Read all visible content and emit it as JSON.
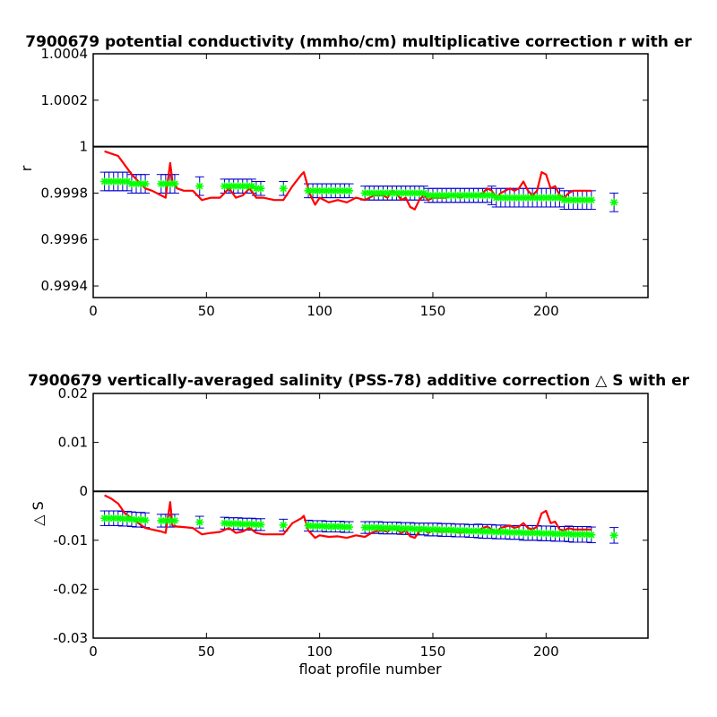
{
  "chart_data": [
    {
      "type": "scatter",
      "title": "7900679 potential conductivity (mmho/cm) multiplicative correction r with er",
      "xlabel": "",
      "ylabel": "r",
      "xlim": [
        0,
        245
      ],
      "ylim": [
        0.99935,
        1.0004
      ],
      "xticks": [
        0,
        50,
        100,
        150,
        200
      ],
      "yticks": [
        0.9994,
        0.9996,
        0.9998,
        1,
        1.0002,
        1.0004
      ],
      "ytick_labels": [
        "0.9994",
        "0.9996",
        "0.9998",
        "1",
        "1.0002",
        "1.0004"
      ],
      "reference_line": 1,
      "colors": {
        "reference": "#000000",
        "red_line": "#ff0000",
        "green_points": "#00ff00",
        "error_bars": "#0000cc"
      },
      "red_line": {
        "x": [
          5,
          8,
          11,
          14,
          17,
          20,
          23,
          26,
          30,
          32,
          34,
          35,
          37,
          40,
          44,
          48,
          52,
          56,
          60,
          63,
          66,
          69,
          72,
          75,
          80,
          84,
          88,
          92,
          93,
          95,
          96,
          98,
          100,
          104,
          108,
          112,
          116,
          120,
          124,
          128,
          130,
          132,
          134,
          136,
          138,
          140,
          142,
          144,
          146,
          148,
          150,
          152,
          154,
          156,
          158,
          160,
          162,
          164,
          166,
          168,
          170,
          172,
          174,
          176,
          178,
          180,
          182,
          184,
          186,
          188,
          190,
          192,
          194,
          196,
          198,
          200,
          202,
          204,
          206,
          208,
          210,
          212,
          214,
          216,
          218,
          220
        ],
        "y": [
          0.99998,
          0.99997,
          0.99996,
          0.99992,
          0.99988,
          0.99985,
          0.99982,
          0.99981,
          0.99979,
          0.99978,
          0.99993,
          0.99985,
          0.99982,
          0.99981,
          0.99981,
          0.99977,
          0.99978,
          0.99978,
          0.99982,
          0.99978,
          0.99979,
          0.99982,
          0.99978,
          0.99978,
          0.99977,
          0.99977,
          0.99983,
          0.99988,
          0.99989,
          0.99982,
          0.99979,
          0.99975,
          0.99978,
          0.99976,
          0.99977,
          0.99976,
          0.99978,
          0.99977,
          0.99979,
          0.99979,
          0.99978,
          0.99981,
          0.9998,
          0.99977,
          0.99978,
          0.99974,
          0.99973,
          0.99977,
          0.99979,
          0.99977,
          0.99978,
          0.99978,
          0.99978,
          0.99978,
          0.99979,
          0.99979,
          0.99978,
          0.99979,
          0.99979,
          0.99979,
          0.99979,
          0.9998,
          0.99982,
          0.99981,
          0.99978,
          0.9998,
          0.99981,
          0.99982,
          0.99981,
          0.99982,
          0.99985,
          0.99981,
          0.99979,
          0.99981,
          0.99989,
          0.99988,
          0.99982,
          0.99983,
          0.99979,
          0.99978,
          0.9998,
          0.99981,
          0.99981,
          0.99981,
          0.99981,
          0.99981
        ]
      },
      "points": {
        "x": [
          5,
          7,
          9,
          11,
          13,
          15,
          17,
          19,
          21,
          23,
          30,
          32,
          34,
          36,
          47,
          58,
          60,
          62,
          64,
          66,
          68,
          70,
          72,
          74,
          84,
          95,
          97,
          99,
          101,
          103,
          105,
          107,
          109,
          111,
          113,
          120,
          122,
          124,
          126,
          128,
          130,
          132,
          134,
          136,
          138,
          140,
          142,
          144,
          146,
          148,
          150,
          152,
          154,
          156,
          158,
          160,
          162,
          164,
          166,
          168,
          170,
          172,
          174,
          176,
          178,
          180,
          182,
          184,
          186,
          188,
          190,
          192,
          194,
          196,
          198,
          200,
          202,
          204,
          206,
          208,
          210,
          212,
          214,
          216,
          218,
          220,
          230
        ],
        "y": [
          0.99985,
          0.99985,
          0.99985,
          0.99985,
          0.99985,
          0.99985,
          0.99984,
          0.99984,
          0.99984,
          0.99984,
          0.99984,
          0.99984,
          0.99984,
          0.99984,
          0.99983,
          0.99983,
          0.99983,
          0.99983,
          0.99983,
          0.99983,
          0.99983,
          0.99983,
          0.99982,
          0.99982,
          0.99982,
          0.99981,
          0.99981,
          0.99981,
          0.99981,
          0.99981,
          0.99981,
          0.99981,
          0.99981,
          0.99981,
          0.99981,
          0.9998,
          0.9998,
          0.9998,
          0.9998,
          0.9998,
          0.9998,
          0.9998,
          0.9998,
          0.9998,
          0.9998,
          0.9998,
          0.9998,
          0.9998,
          0.9998,
          0.99979,
          0.99979,
          0.99979,
          0.99979,
          0.99979,
          0.99979,
          0.99979,
          0.99979,
          0.99979,
          0.99979,
          0.99979,
          0.99979,
          0.99979,
          0.99979,
          0.99979,
          0.99978,
          0.99978,
          0.99978,
          0.99978,
          0.99978,
          0.99978,
          0.99978,
          0.99978,
          0.99978,
          0.99978,
          0.99978,
          0.99978,
          0.99978,
          0.99978,
          0.99978,
          0.99977,
          0.99977,
          0.99977,
          0.99977,
          0.99977,
          0.99977,
          0.99977,
          0.99976
        ],
        "err": [
          4e-05,
          4e-05,
          4e-05,
          4e-05,
          4e-05,
          4e-05,
          4e-05,
          4e-05,
          4e-05,
          4e-05,
          4e-05,
          4e-05,
          4e-05,
          4e-05,
          4e-05,
          3e-05,
          3e-05,
          3e-05,
          3e-05,
          3e-05,
          3e-05,
          3e-05,
          3e-05,
          3e-05,
          3e-05,
          3e-05,
          3e-05,
          3e-05,
          3e-05,
          3e-05,
          3e-05,
          3e-05,
          3e-05,
          3e-05,
          3e-05,
          3e-05,
          3e-05,
          3e-05,
          3e-05,
          3e-05,
          3e-05,
          3e-05,
          3e-05,
          3e-05,
          3e-05,
          3e-05,
          3e-05,
          3e-05,
          3e-05,
          3e-05,
          3e-05,
          3e-05,
          3e-05,
          3e-05,
          3e-05,
          3e-05,
          3e-05,
          3e-05,
          3e-05,
          3e-05,
          3e-05,
          3e-05,
          3e-05,
          4e-05,
          4e-05,
          4e-05,
          4e-05,
          4e-05,
          4e-05,
          4e-05,
          4e-05,
          4e-05,
          4e-05,
          4e-05,
          4e-05,
          4e-05,
          4e-05,
          4e-05,
          4e-05,
          4e-05,
          4e-05,
          4e-05,
          4e-05,
          4e-05,
          4e-05,
          4e-05,
          4e-05
        ]
      }
    },
    {
      "type": "scatter",
      "title": "7900679 vertically-averaged salinity (PSS-78) additive correction △ S with er",
      "xlabel": "float profile number",
      "ylabel": "△ S",
      "xlim": [
        0,
        245
      ],
      "ylim": [
        -0.03,
        0.02
      ],
      "xticks": [
        0,
        50,
        100,
        150,
        200
      ],
      "yticks": [
        -0.03,
        -0.02,
        -0.01,
        0,
        0.01,
        0.02
      ],
      "ytick_labels": [
        "-0.03",
        "-0.02",
        "-0.01",
        "0",
        "0.01",
        "0.02"
      ],
      "reference_line": 0,
      "colors": {
        "reference": "#000000",
        "red_line": "#ff0000",
        "green_points": "#00ff00",
        "error_bars": "#0000cc"
      },
      "red_line": {
        "x": [
          5,
          8,
          11,
          14,
          17,
          20,
          23,
          26,
          30,
          32,
          34,
          35,
          37,
          40,
          44,
          48,
          52,
          56,
          60,
          63,
          66,
          69,
          72,
          75,
          80,
          84,
          88,
          92,
          93,
          95,
          96,
          98,
          100,
          104,
          108,
          112,
          116,
          120,
          124,
          128,
          130,
          132,
          134,
          136,
          138,
          140,
          142,
          144,
          146,
          148,
          150,
          152,
          154,
          156,
          158,
          160,
          162,
          164,
          166,
          168,
          170,
          172,
          174,
          176,
          178,
          180,
          182,
          184,
          186,
          188,
          190,
          192,
          194,
          196,
          198,
          200,
          202,
          204,
          206,
          208,
          210,
          212,
          214,
          216,
          218,
          220
        ],
        "y": [
          -0.0008,
          -0.0015,
          -0.0025,
          -0.0045,
          -0.0055,
          -0.0065,
          -0.0075,
          -0.0078,
          -0.0082,
          -0.0085,
          -0.0022,
          -0.007,
          -0.0072,
          -0.0073,
          -0.0075,
          -0.0088,
          -0.0085,
          -0.0083,
          -0.0075,
          -0.0085,
          -0.0082,
          -0.0075,
          -0.0085,
          -0.0088,
          -0.0088,
          -0.0088,
          -0.0065,
          -0.0055,
          -0.005,
          -0.008,
          -0.0085,
          -0.0095,
          -0.009,
          -0.0093,
          -0.0092,
          -0.0095,
          -0.009,
          -0.0093,
          -0.0082,
          -0.008,
          -0.0083,
          -0.0075,
          -0.0078,
          -0.0085,
          -0.008,
          -0.0092,
          -0.0095,
          -0.0082,
          -0.0078,
          -0.0085,
          -0.008,
          -0.0082,
          -0.0083,
          -0.0082,
          -0.0082,
          -0.0083,
          -0.0085,
          -0.0083,
          -0.0082,
          -0.0083,
          -0.008,
          -0.0075,
          -0.0072,
          -0.0078,
          -0.0082,
          -0.0075,
          -0.0072,
          -0.007,
          -0.0075,
          -0.0072,
          -0.0065,
          -0.0075,
          -0.0078,
          -0.0072,
          -0.0045,
          -0.004,
          -0.0065,
          -0.0062,
          -0.0078,
          -0.008,
          -0.0075,
          -0.0078,
          -0.0078,
          -0.0078,
          -0.0078,
          -0.0078
        ]
      },
      "points": {
        "x": [
          5,
          7,
          9,
          11,
          13,
          15,
          17,
          19,
          21,
          23,
          30,
          32,
          34,
          36,
          47,
          58,
          60,
          62,
          64,
          66,
          68,
          70,
          72,
          74,
          84,
          95,
          97,
          99,
          101,
          103,
          105,
          107,
          109,
          111,
          113,
          120,
          122,
          124,
          126,
          128,
          130,
          132,
          134,
          136,
          138,
          140,
          142,
          144,
          146,
          148,
          150,
          152,
          154,
          156,
          158,
          160,
          162,
          164,
          166,
          168,
          170,
          172,
          174,
          176,
          178,
          180,
          182,
          184,
          186,
          188,
          190,
          192,
          194,
          196,
          198,
          200,
          202,
          204,
          206,
          208,
          210,
          212,
          214,
          216,
          218,
          220,
          230
        ],
        "y": [
          -0.0055,
          -0.0055,
          -0.0055,
          -0.0055,
          -0.0056,
          -0.0056,
          -0.0057,
          -0.0058,
          -0.0058,
          -0.0059,
          -0.006,
          -0.006,
          -0.006,
          -0.006,
          -0.0063,
          -0.0065,
          -0.0066,
          -0.0066,
          -0.0066,
          -0.0067,
          -0.0067,
          -0.0067,
          -0.0068,
          -0.0068,
          -0.0069,
          -0.007,
          -0.0071,
          -0.0071,
          -0.0071,
          -0.0072,
          -0.0072,
          -0.0072,
          -0.0072,
          -0.0073,
          -0.0073,
          -0.0074,
          -0.0074,
          -0.0074,
          -0.0074,
          -0.0075,
          -0.0075,
          -0.0075,
          -0.0075,
          -0.0076,
          -0.0076,
          -0.0076,
          -0.0077,
          -0.0077,
          -0.0077,
          -0.0078,
          -0.0078,
          -0.0078,
          -0.0079,
          -0.0079,
          -0.0079,
          -0.008,
          -0.008,
          -0.008,
          -0.0081,
          -0.0081,
          -0.0081,
          -0.0082,
          -0.0082,
          -0.0082,
          -0.0083,
          -0.0083,
          -0.0083,
          -0.0084,
          -0.0084,
          -0.0084,
          -0.0085,
          -0.0085,
          -0.0085,
          -0.0085,
          -0.0086,
          -0.0086,
          -0.0086,
          -0.0087,
          -0.0087,
          -0.0087,
          -0.0087,
          -0.0088,
          -0.0088,
          -0.0088,
          -0.0088,
          -0.0089,
          -0.009
        ],
        "err": [
          0.0015,
          0.0015,
          0.0015,
          0.0015,
          0.0015,
          0.0015,
          0.0015,
          0.0015,
          0.0015,
          0.0015,
          0.0013,
          0.0013,
          0.0013,
          0.0013,
          0.0012,
          0.0012,
          0.0012,
          0.0012,
          0.0012,
          0.0012,
          0.0012,
          0.0012,
          0.0012,
          0.0012,
          0.0012,
          0.0011,
          0.0011,
          0.0011,
          0.0011,
          0.0011,
          0.0011,
          0.0011,
          0.0011,
          0.0011,
          0.0011,
          0.0012,
          0.0012,
          0.0012,
          0.0012,
          0.0012,
          0.0012,
          0.0012,
          0.0012,
          0.0012,
          0.0012,
          0.0012,
          0.0012,
          0.0012,
          0.0012,
          0.0013,
          0.0013,
          0.0013,
          0.0013,
          0.0013,
          0.0013,
          0.0013,
          0.0013,
          0.0013,
          0.0013,
          0.0013,
          0.0014,
          0.0014,
          0.0014,
          0.0014,
          0.0014,
          0.0014,
          0.0014,
          0.0014,
          0.0014,
          0.0014,
          0.0015,
          0.0015,
          0.0015,
          0.0015,
          0.0015,
          0.0015,
          0.0015,
          0.0015,
          0.0015,
          0.0015,
          0.0016,
          0.0016,
          0.0016,
          0.0016,
          0.0016,
          0.0016,
          0.0016
        ]
      }
    }
  ]
}
